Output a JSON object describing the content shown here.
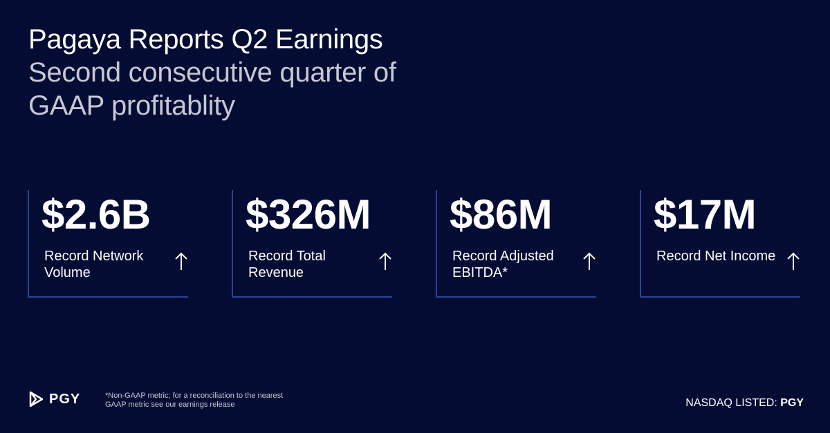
{
  "headline": {
    "title": "Pagaya Reports Q2 Earnings",
    "subtitle": "Second consecutive quarter of GAAP profitablity"
  },
  "metrics": [
    {
      "value": "$2.6B",
      "label": "Record Network Volume",
      "icon": "arrow-up-icon"
    },
    {
      "value": "$326M",
      "label": "Record Total Revenue",
      "icon": "arrow-up-icon"
    },
    {
      "value": "$86M",
      "label": "Record Adjusted EBITDA*",
      "icon": "arrow-up-icon"
    },
    {
      "value": "$17M",
      "label": "Record Net Income",
      "icon": "arrow-up-icon"
    }
  ],
  "footer": {
    "brand": "PGY",
    "logo_icon": "pagaya-play-logo-icon",
    "footnote": "*Non-GAAP metric; for a reconciliation to the nearest GAAP metric see our earnings release",
    "listing_prefix": "NASDAQ LISTED: ",
    "listing_ticker": "PGY"
  },
  "colors": {
    "background": "#050c34",
    "accent_line": "#2a4394",
    "subtitle": "#c6c8d2"
  }
}
